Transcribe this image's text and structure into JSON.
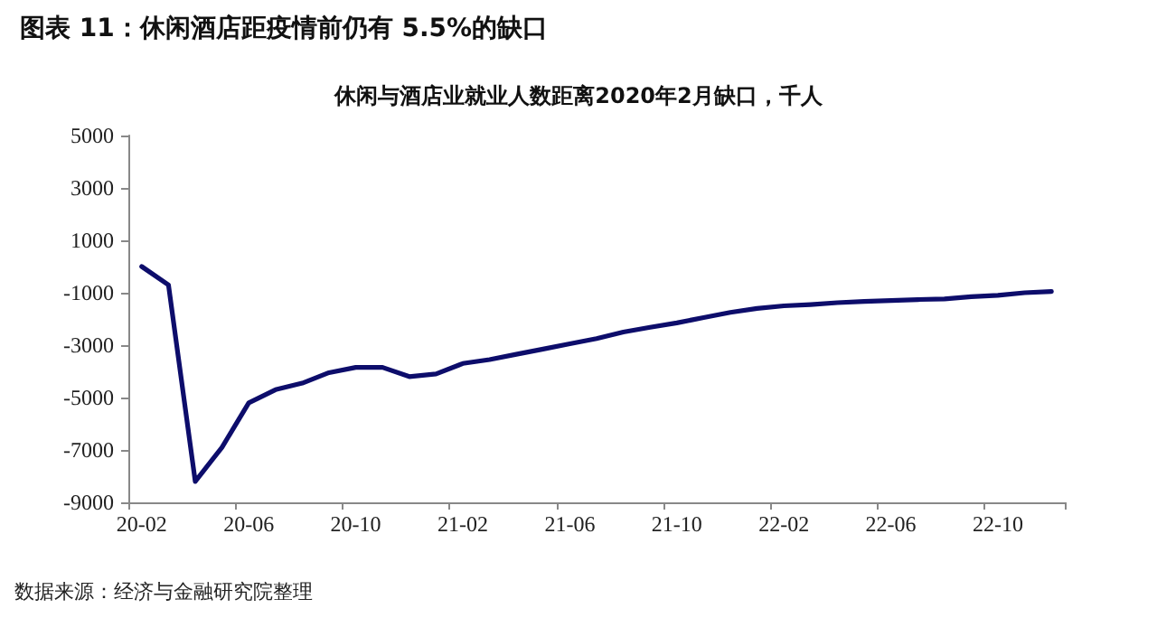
{
  "chart_data": {
    "type": "line",
    "title": "图表 11：休闲酒店距疫情前仍有 5.5%的缺口",
    "subtitle": "休闲与酒店业就业人数距离2020年2月缺口，千人",
    "annotations": [
      "数据来源：经济与金融研究院整理"
    ],
    "categories": [
      "20-02",
      null,
      null,
      null,
      "20-06",
      null,
      null,
      null,
      "20-10",
      null,
      null,
      null,
      "21-02",
      null,
      null,
      null,
      "21-06",
      null,
      null,
      null,
      "21-10",
      null,
      null,
      null,
      "22-02",
      null,
      null,
      null,
      "22-06",
      null,
      null,
      null,
      "22-10",
      null,
      null
    ],
    "series": [
      {
        "color": "#0d0d6b",
        "values": [
          0,
          -700,
          -8200,
          -6900,
          -5200,
          -4700,
          -4450,
          -4050,
          -3850,
          -3850,
          -4200,
          -4100,
          -3700,
          -3550,
          -3350,
          -3150,
          -2950,
          -2750,
          -2500,
          -2320,
          -2150,
          -1950,
          -1750,
          -1600,
          -1500,
          -1450,
          -1380,
          -1330,
          -1300,
          -1260,
          -1240,
          -1150,
          -1100,
          -1000,
          -950
        ]
      }
    ],
    "ylim": [
      -9000,
      5000
    ],
    "yticks": [
      -9000,
      -7000,
      -5000,
      -3000,
      -1000,
      1000,
      3000,
      5000
    ],
    "grid": false,
    "marker": "none",
    "line_style": "solid"
  }
}
